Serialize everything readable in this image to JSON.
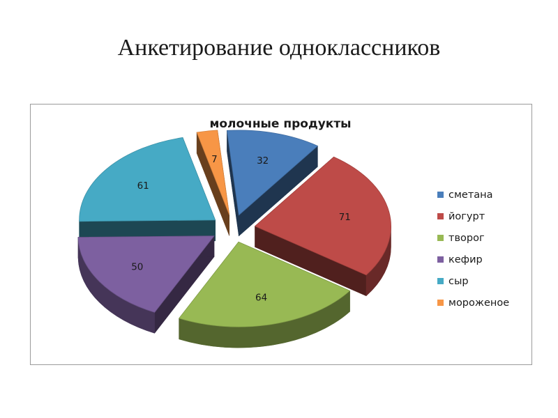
{
  "slide": {
    "title": "Анкетирование одноклассников"
  },
  "chart_data": {
    "type": "pie",
    "title": "молочные продукты",
    "categories": [
      "сметана",
      "йогурт",
      "творог",
      "кефир",
      "сыр",
      "мороженое"
    ],
    "values": [
      32,
      71,
      64,
      50,
      61,
      7
    ],
    "colors": [
      "#4a7ebb",
      "#be4b48",
      "#98b954",
      "#7d60a0",
      "#46aac5",
      "#f79646"
    ],
    "legend_position": "right",
    "data_labels": true,
    "style": "3d-exploded"
  }
}
